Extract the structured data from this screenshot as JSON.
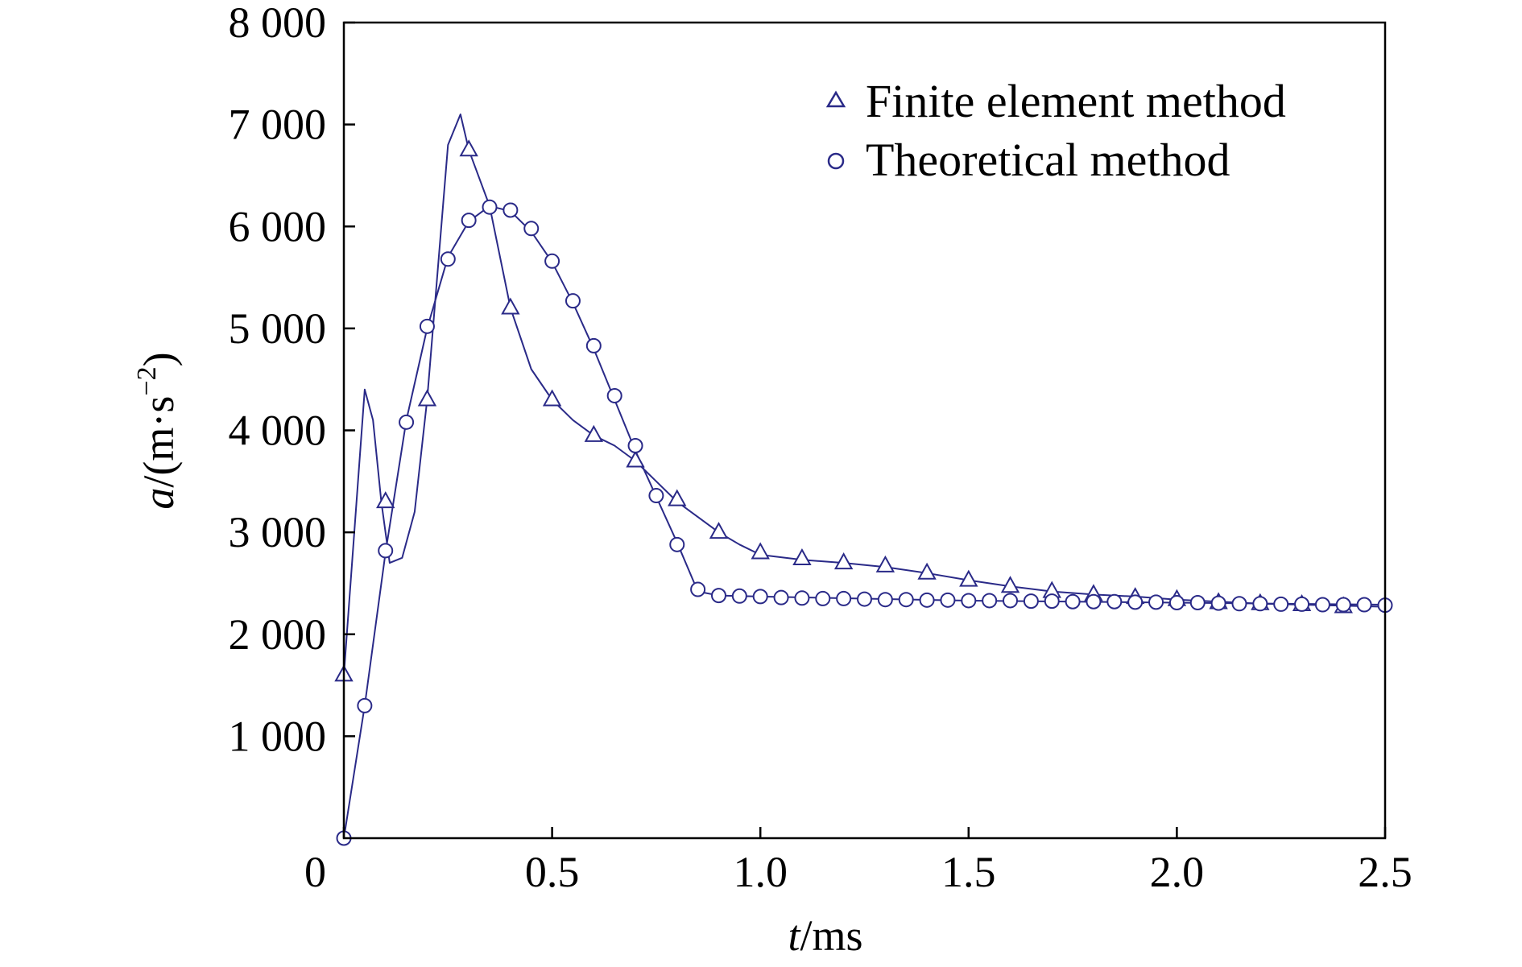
{
  "chart_data": {
    "type": "line",
    "title": "",
    "xlabel": {
      "var": "t",
      "unit": "/ms"
    },
    "ylabel": {
      "var": "a",
      "unit_pre": "/(m·s",
      "exp": "−2",
      "unit_post": ")"
    },
    "xlim": [
      0,
      2.5
    ],
    "ylim": [
      0,
      8000
    ],
    "x_ticks": [
      {
        "value": 0,
        "label": "0"
      },
      {
        "value": 0.5,
        "label": "0.5"
      },
      {
        "value": 1.0,
        "label": "1.0"
      },
      {
        "value": 1.5,
        "label": "1.5"
      },
      {
        "value": 2.0,
        "label": "2.0"
      },
      {
        "value": 2.5,
        "label": "2.5"
      }
    ],
    "y_ticks": [
      {
        "value": 1000,
        "label": "1 000"
      },
      {
        "value": 2000,
        "label": "2 000"
      },
      {
        "value": 3000,
        "label": "3 000"
      },
      {
        "value": 4000,
        "label": "4 000"
      },
      {
        "value": 5000,
        "label": "5 000"
      },
      {
        "value": 6000,
        "label": "6 000"
      },
      {
        "value": 7000,
        "label": "7 000"
      },
      {
        "value": 8000,
        "label": "8 000"
      }
    ],
    "grid": false,
    "legend_position": "top-right",
    "line_color": "#2a2a88",
    "series": [
      {
        "name": "Finite element method",
        "marker": "triangle",
        "line": [
          [
            0,
            1600
          ],
          [
            0.05,
            4400
          ],
          [
            0.07,
            4100
          ],
          [
            0.09,
            3300
          ],
          [
            0.11,
            2700
          ],
          [
            0.14,
            2750
          ],
          [
            0.17,
            3200
          ],
          [
            0.2,
            4300
          ],
          [
            0.25,
            6800
          ],
          [
            0.28,
            7100
          ],
          [
            0.3,
            6750
          ],
          [
            0.35,
            6200
          ],
          [
            0.4,
            5200
          ],
          [
            0.45,
            4600
          ],
          [
            0.5,
            4300
          ],
          [
            0.55,
            4100
          ],
          [
            0.6,
            3950
          ],
          [
            0.65,
            3850
          ],
          [
            0.7,
            3700
          ],
          [
            0.75,
            3500
          ],
          [
            0.8,
            3300
          ],
          [
            0.85,
            3150
          ],
          [
            0.9,
            3000
          ],
          [
            0.95,
            2880
          ],
          [
            1.0,
            2780
          ],
          [
            1.1,
            2730
          ],
          [
            1.2,
            2700
          ],
          [
            1.3,
            2660
          ],
          [
            1.4,
            2600
          ],
          [
            1.5,
            2530
          ],
          [
            1.6,
            2470
          ],
          [
            1.7,
            2420
          ],
          [
            1.8,
            2390
          ],
          [
            1.9,
            2370
          ],
          [
            2.0,
            2340
          ],
          [
            2.1,
            2320
          ],
          [
            2.2,
            2300
          ],
          [
            2.3,
            2290
          ],
          [
            2.4,
            2280
          ],
          [
            2.5,
            2270
          ]
        ],
        "markers": [
          [
            0,
            1600
          ],
          [
            0.1,
            3300
          ],
          [
            0.2,
            4300
          ],
          [
            0.3,
            6750
          ],
          [
            0.4,
            5200
          ],
          [
            0.5,
            4300
          ],
          [
            0.6,
            3950
          ],
          [
            0.7,
            3700
          ],
          [
            0.8,
            3320
          ],
          [
            0.9,
            3000
          ],
          [
            1.0,
            2800
          ],
          [
            1.1,
            2740
          ],
          [
            1.2,
            2700
          ],
          [
            1.3,
            2670
          ],
          [
            1.4,
            2600
          ],
          [
            1.5,
            2530
          ],
          [
            1.6,
            2470
          ],
          [
            1.7,
            2420
          ],
          [
            1.8,
            2390
          ],
          [
            1.9,
            2360
          ],
          [
            2.0,
            2340
          ],
          [
            2.1,
            2310
          ],
          [
            2.2,
            2300
          ],
          [
            2.3,
            2290
          ],
          [
            2.4,
            2270
          ]
        ]
      },
      {
        "name": "Theoretical method",
        "marker": "circle",
        "line": [
          [
            0,
            0
          ],
          [
            0.05,
            1300
          ],
          [
            0.1,
            2800
          ],
          [
            0.15,
            4100
          ],
          [
            0.2,
            5000
          ],
          [
            0.25,
            5700
          ],
          [
            0.3,
            6050
          ],
          [
            0.35,
            6200
          ],
          [
            0.4,
            6150
          ],
          [
            0.45,
            5950
          ],
          [
            0.5,
            5650
          ],
          [
            0.55,
            5250
          ],
          [
            0.6,
            4800
          ],
          [
            0.65,
            4300
          ],
          [
            0.7,
            3800
          ],
          [
            0.75,
            3350
          ],
          [
            0.8,
            2900
          ],
          [
            0.85,
            2420
          ],
          [
            0.9,
            2380
          ],
          [
            0.95,
            2375
          ],
          [
            1.0,
            2370
          ],
          [
            1.5,
            2330
          ],
          [
            2.0,
            2310
          ],
          [
            2.5,
            2290
          ]
        ],
        "markers": [
          [
            0,
            0
          ],
          [
            0.05,
            1300
          ],
          [
            0.1,
            2820
          ],
          [
            0.15,
            4080
          ],
          [
            0.2,
            5020
          ],
          [
            0.25,
            5680
          ],
          [
            0.3,
            6060
          ],
          [
            0.35,
            6190
          ],
          [
            0.4,
            6160
          ],
          [
            0.45,
            5980
          ],
          [
            0.5,
            5660
          ],
          [
            0.55,
            5270
          ],
          [
            0.6,
            4830
          ],
          [
            0.65,
            4340
          ],
          [
            0.7,
            3850
          ],
          [
            0.75,
            3360
          ],
          [
            0.8,
            2880
          ],
          [
            0.85,
            2440
          ],
          [
            0.9,
            2380
          ],
          [
            0.95,
            2375
          ],
          [
            1.0,
            2370
          ],
          [
            1.05,
            2360
          ],
          [
            1.1,
            2355
          ],
          [
            1.15,
            2350
          ],
          [
            1.2,
            2350
          ],
          [
            1.25,
            2345
          ],
          [
            1.3,
            2340
          ],
          [
            1.35,
            2340
          ],
          [
            1.4,
            2335
          ],
          [
            1.45,
            2335
          ],
          [
            1.5,
            2330
          ],
          [
            1.55,
            2330
          ],
          [
            1.6,
            2330
          ],
          [
            1.65,
            2325
          ],
          [
            1.7,
            2325
          ],
          [
            1.75,
            2320
          ],
          [
            1.8,
            2320
          ],
          [
            1.85,
            2320
          ],
          [
            1.9,
            2315
          ],
          [
            1.95,
            2315
          ],
          [
            2.0,
            2310
          ],
          [
            2.05,
            2310
          ],
          [
            2.1,
            2305
          ],
          [
            2.15,
            2300
          ],
          [
            2.2,
            2300
          ],
          [
            2.25,
            2295
          ],
          [
            2.3,
            2295
          ],
          [
            2.35,
            2290
          ],
          [
            2.4,
            2290
          ],
          [
            2.45,
            2290
          ],
          [
            2.5,
            2285
          ]
        ]
      }
    ]
  }
}
